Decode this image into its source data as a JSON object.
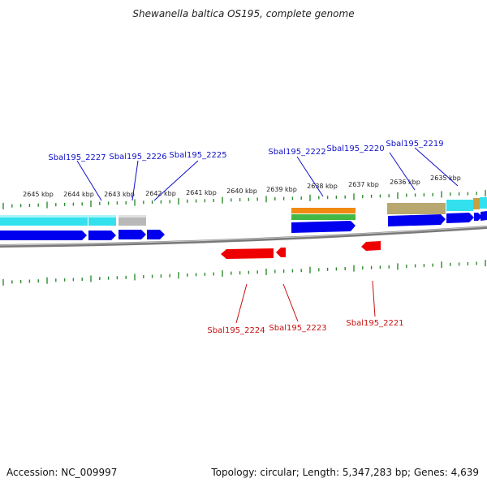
{
  "title": "Shewanella baltica OS195, complete genome",
  "accession": "Accession: NC_009997",
  "topology": "Topology: circular; Length: 5,347,283 bp; Genes: 4,639",
  "colors": {
    "plus_strand": "#0000ee",
    "minus_strand": "#ee0000",
    "label_plus": "#1010c8",
    "label_minus": "#c81010",
    "tick": "#2e8b2e",
    "backbone": "#7a7a7a",
    "cyan_feature": "#33e0ee",
    "gray_feature": "#b8b8b8",
    "orange_feature": "#f08a10",
    "green_feature": "#44b844",
    "khaki_feature": "#b8a870"
  },
  "kbp_labels": [
    "2645 kbp",
    "2644 kbp",
    "2643 kbp",
    "2642 kbp",
    "2641 kbp",
    "2640 kbp",
    "2639 kbp",
    "2638 kbp",
    "2637 kbp",
    "2636 kbp",
    "2635 kbp"
  ],
  "genes_top": [
    "Sbal195_2227",
    "Sbal195_2226",
    "Sbal195_2225",
    "Sbal195_2222",
    "Sbal195_2220",
    "Sbal195_2219"
  ],
  "genes_bottom": [
    "Sbal195_2224",
    "Sbal195_2223",
    "Sbal195_2221"
  ]
}
